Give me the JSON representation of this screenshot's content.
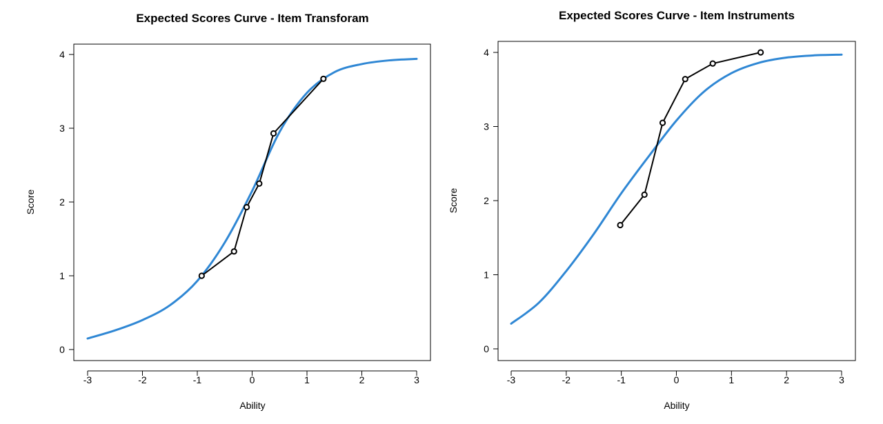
{
  "chart_data": [
    {
      "type": "line",
      "title": "Expected Scores Curve - Item  Transforam",
      "xlabel": "Ability",
      "ylabel": "Score",
      "xlim": [
        -3,
        3
      ],
      "ylim": [
        0,
        4
      ],
      "x_ticks": [
        "-3",
        "-2",
        "-1",
        "0",
        "1",
        "2",
        "3"
      ],
      "y_ticks": [
        "0",
        "1",
        "2",
        "3",
        "4"
      ],
      "grid": false,
      "legend": "none",
      "series": [
        {
          "kind": "curve",
          "color": "#2f87d4",
          "x": [
            -3.0,
            -2.5,
            -2.0,
            -1.5,
            -1.0,
            -0.5,
            0.0,
            0.5,
            1.0,
            1.5,
            2.0,
            2.5,
            3.0
          ],
          "y": [
            0.15,
            0.26,
            0.4,
            0.6,
            0.93,
            1.45,
            2.15,
            2.95,
            3.48,
            3.76,
            3.87,
            3.92,
            3.94
          ]
        },
        {
          "kind": "points",
          "color": "#000000",
          "x": [
            -0.92,
            -0.33,
            -0.1,
            0.13,
            0.39,
            1.3
          ],
          "y": [
            1.0,
            1.33,
            1.93,
            2.25,
            2.93,
            3.67
          ]
        }
      ]
    },
    {
      "type": "line",
      "title": "Expected Scores Curve - Item  Instruments",
      "xlabel": "Ability",
      "ylabel": "Score",
      "xlim": [
        -3,
        3
      ],
      "ylim": [
        0,
        4
      ],
      "x_ticks": [
        "-3",
        "-2",
        "-1",
        "0",
        "1",
        "2",
        "3"
      ],
      "y_ticks": [
        "0",
        "1",
        "2",
        "3",
        "4"
      ],
      "grid": false,
      "legend": "none",
      "series": [
        {
          "kind": "curve",
          "color": "#2f87d4",
          "x": [
            -3.0,
            -2.5,
            -2.0,
            -1.5,
            -1.0,
            -0.5,
            0.0,
            0.5,
            1.0,
            1.5,
            2.0,
            2.5,
            3.0
          ],
          "y": [
            0.34,
            0.62,
            1.05,
            1.55,
            2.1,
            2.6,
            3.08,
            3.47,
            3.72,
            3.86,
            3.93,
            3.96,
            3.97
          ]
        },
        {
          "kind": "points",
          "color": "#000000",
          "x": [
            -1.02,
            -0.58,
            -0.25,
            0.16,
            0.66,
            1.53
          ],
          "y": [
            1.67,
            2.08,
            3.05,
            3.64,
            3.85,
            4.0
          ]
        }
      ]
    }
  ]
}
